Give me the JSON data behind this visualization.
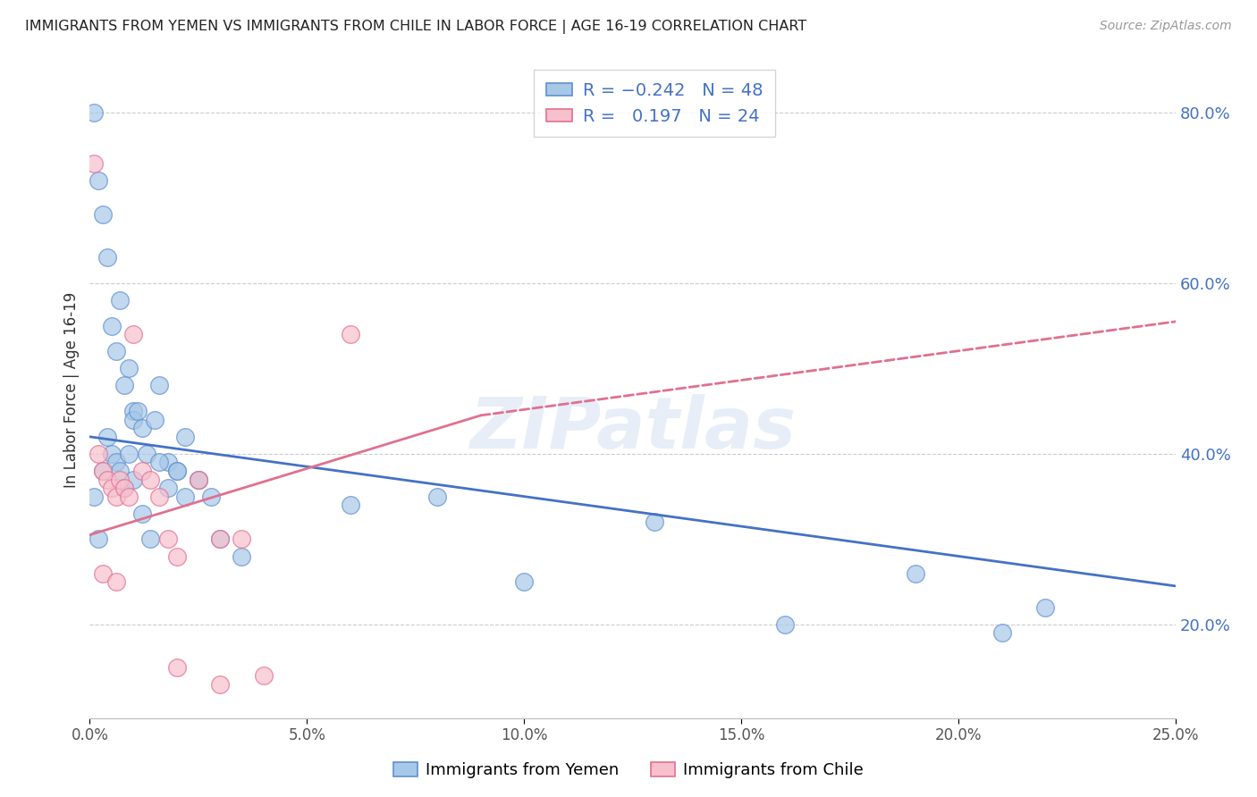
{
  "title": "IMMIGRANTS FROM YEMEN VS IMMIGRANTS FROM CHILE IN LABOR FORCE | AGE 16-19 CORRELATION CHART",
  "source": "Source: ZipAtlas.com",
  "ylabel": "In Labor Force | Age 16-19",
  "legend_yemen": "Immigrants from Yemen",
  "legend_chile": "Immigrants from Chile",
  "R_yemen": -0.242,
  "N_yemen": 48,
  "R_chile": 0.197,
  "N_chile": 24,
  "xlim": [
    0.0,
    0.25
  ],
  "ylim": [
    0.09,
    0.86
  ],
  "yticks": [
    0.2,
    0.4,
    0.6,
    0.8
  ],
  "xticks": [
    0.0,
    0.05,
    0.1,
    0.15,
    0.2,
    0.25
  ],
  "color_yemen_fill": "#A8C8E8",
  "color_yemen_edge": "#6090D0",
  "color_chile_fill": "#F8C0CC",
  "color_chile_edge": "#E07090",
  "color_trend_yemen": "#4472C4",
  "color_trend_chile": "#E07090",
  "watermark": "ZIPatlas",
  "yemen_x": [
    0.001,
    0.002,
    0.003,
    0.004,
    0.005,
    0.006,
    0.007,
    0.008,
    0.009,
    0.01,
    0.01,
    0.011,
    0.012,
    0.013,
    0.015,
    0.016,
    0.018,
    0.02,
    0.022,
    0.025,
    0.001,
    0.002,
    0.003,
    0.004,
    0.005,
    0.006,
    0.007,
    0.008,
    0.009,
    0.01,
    0.012,
    0.014,
    0.016,
    0.018,
    0.02,
    0.022,
    0.025,
    0.028,
    0.03,
    0.035,
    0.06,
    0.08,
    0.1,
    0.13,
    0.16,
    0.19,
    0.21,
    0.22
  ],
  "yemen_y": [
    0.8,
    0.72,
    0.68,
    0.63,
    0.55,
    0.52,
    0.58,
    0.48,
    0.5,
    0.45,
    0.44,
    0.45,
    0.43,
    0.4,
    0.44,
    0.48,
    0.39,
    0.38,
    0.42,
    0.37,
    0.35,
    0.3,
    0.38,
    0.42,
    0.4,
    0.39,
    0.38,
    0.36,
    0.4,
    0.37,
    0.33,
    0.3,
    0.39,
    0.36,
    0.38,
    0.35,
    0.37,
    0.35,
    0.3,
    0.28,
    0.34,
    0.35,
    0.25,
    0.32,
    0.2,
    0.26,
    0.19,
    0.22
  ],
  "chile_x": [
    0.001,
    0.002,
    0.003,
    0.004,
    0.005,
    0.006,
    0.007,
    0.008,
    0.009,
    0.01,
    0.012,
    0.014,
    0.016,
    0.018,
    0.02,
    0.025,
    0.03,
    0.035,
    0.04,
    0.06,
    0.003,
    0.006,
    0.02,
    0.03
  ],
  "chile_y": [
    0.74,
    0.4,
    0.38,
    0.37,
    0.36,
    0.35,
    0.37,
    0.36,
    0.35,
    0.54,
    0.38,
    0.37,
    0.35,
    0.3,
    0.28,
    0.37,
    0.3,
    0.3,
    0.14,
    0.54,
    0.26,
    0.25,
    0.15,
    0.13
  ],
  "trend_yemen_x0": 0.0,
  "trend_yemen_y0": 0.42,
  "trend_yemen_x1": 0.25,
  "trend_yemen_y1": 0.245,
  "trend_chile_solid_x0": 0.0,
  "trend_chile_solid_y0": 0.305,
  "trend_chile_solid_x1": 0.09,
  "trend_chile_solid_y1": 0.445,
  "trend_chile_dash_x1": 0.25,
  "trend_chile_dash_y1": 0.555
}
